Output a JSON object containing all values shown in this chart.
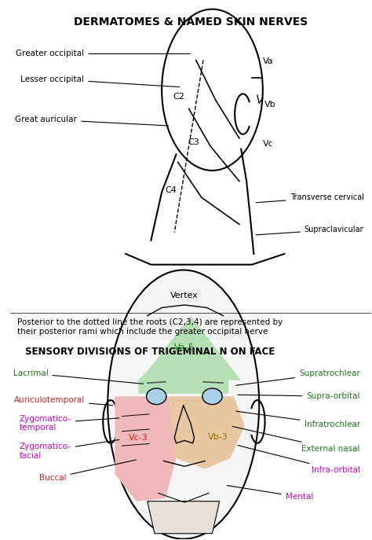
{
  "title1": "DERMATOMES & NAMED SKIN NERVES",
  "title2": "SENSORY DIVISIONS OF TRIGEMINAL N ON FACE",
  "subtitle_text": "Posterior to the dotted line the roots (C2,3,4) are represented by\ntheir posterior rami which include the greater occipital nerve",
  "bg_color": "#ffffff"
}
